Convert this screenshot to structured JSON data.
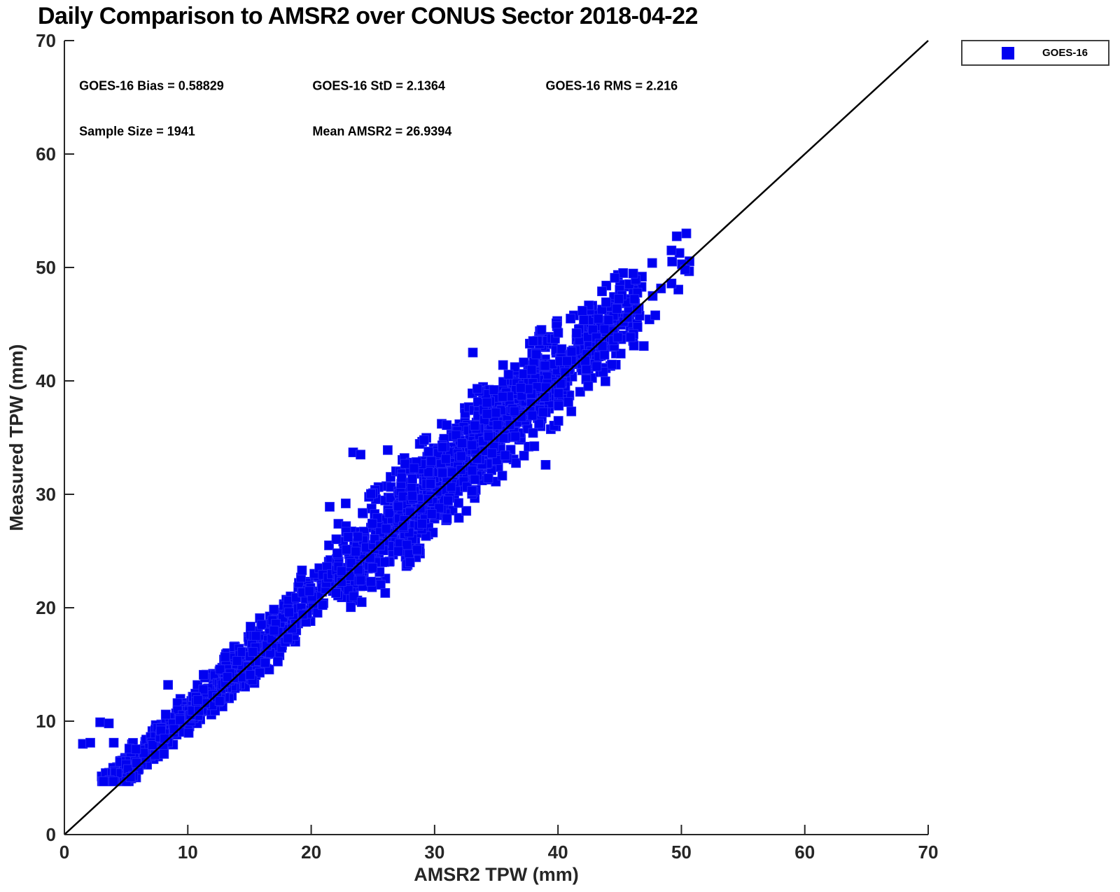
{
  "page": {
    "background": "#ffffff"
  },
  "chart_data": {
    "type": "scatter",
    "title": "Daily Comparison to AMSR2 over CONUS Sector 2018-04-22",
    "xlabel": "AMSR2 TPW (mm)",
    "ylabel": "Measured TPW (mm)",
    "xlim": [
      0,
      70
    ],
    "ylim": [
      0,
      70
    ],
    "xticks": [
      0,
      10,
      20,
      30,
      40,
      50,
      60,
      70
    ],
    "yticks": [
      0,
      10,
      20,
      30,
      40,
      50,
      60,
      70
    ],
    "grid": false,
    "axis_color": "#262626",
    "annotations": [
      {
        "text": "GOES-16 Bias = 0.58829",
        "x": 1.2,
        "y": 66.0
      },
      {
        "text": "GOES-16 StD = 2.1364",
        "x": 20.1,
        "y": 66.0
      },
      {
        "text": "GOES-16 RMS = 2.216",
        "x": 39.0,
        "y": 66.0
      },
      {
        "text": "Sample Size = 1941",
        "x": 1.2,
        "y": 62.0
      },
      {
        "text": "Mean AMSR2 = 26.9394",
        "x": 20.1,
        "y": 62.0
      }
    ],
    "stats": {
      "bias": 0.58829,
      "std": 2.1364,
      "rms": 2.216,
      "sample_size": 1941,
      "mean_amsr2": 26.9394
    },
    "reference_line": {
      "type": "identity",
      "from": [
        0,
        0
      ],
      "to": [
        70,
        70
      ],
      "color": "#000000",
      "width": 2.5
    },
    "legend": {
      "position": "outside-top-right",
      "entries": [
        {
          "label": "GOES-16",
          "marker": "square",
          "color": "#0101F0"
        }
      ]
    },
    "series": [
      {
        "name": "GOES-16",
        "marker": "square",
        "marker_color": "#0101F0",
        "marker_edge_color": "#2B2BF7",
        "marker_size_px": 13,
        "n_points": 1941,
        "point_distribution": {
          "comment": "Cloud hugging the 1:1 line from (3,5) to (51,53); y = x + bias + spread*gauss per band",
          "seed": 7,
          "y_min_clip": 4.7,
          "bands": [
            {
              "x0": 3.0,
              "x1": 5.0,
              "count": 90,
              "bias": 0.9,
              "spread": 0.55
            },
            {
              "x0": 5.0,
              "x1": 10.0,
              "count": 210,
              "bias": 0.8,
              "spread": 0.8
            },
            {
              "x0": 10.0,
              "x1": 15.0,
              "count": 200,
              "bias": 0.6,
              "spread": 1.0
            },
            {
              "x0": 15.0,
              "x1": 19.0,
              "count": 150,
              "bias": 0.6,
              "spread": 1.2
            },
            {
              "x0": 19.0,
              "x1": 22.0,
              "count": 70,
              "bias": 1.2,
              "spread": 1.3
            },
            {
              "x0": 22.0,
              "x1": 27.0,
              "count": 180,
              "bias": 0.8,
              "spread": 2.0
            },
            {
              "x0": 27.0,
              "x1": 33.0,
              "count": 370,
              "bias": 0.8,
              "spread": 2.2
            },
            {
              "x0": 33.0,
              "x1": 40.0,
              "count": 420,
              "bias": 1.0,
              "spread": 2.2
            },
            {
              "x0": 40.0,
              "x1": 47.0,
              "count": 220,
              "bias": 0.3,
              "spread": 1.9
            },
            {
              "x0": 47.0,
              "x1": 51.0,
              "count": 13,
              "bias": 0.6,
              "spread": 1.4
            }
          ],
          "outliers": [
            [
              1.5,
              8.0
            ],
            [
              2.1,
              8.1
            ],
            [
              2.9,
              9.9
            ],
            [
              3.6,
              9.8
            ],
            [
              4.0,
              8.1
            ],
            [
              8.4,
              13.2
            ],
            [
              21.5,
              28.9
            ],
            [
              22.8,
              29.2
            ],
            [
              23.4,
              33.7
            ],
            [
              24.0,
              33.5
            ],
            [
              26.2,
              33.9
            ],
            [
              33.1,
              42.5
            ],
            [
              26.0,
              21.3
            ],
            [
              28.0,
              24.0
            ],
            [
              39.0,
              32.6
            ],
            [
              49.2,
              51.5
            ],
            [
              50.4,
              53.0
            ],
            [
              50.3,
              49.8
            ]
          ]
        }
      }
    ]
  }
}
